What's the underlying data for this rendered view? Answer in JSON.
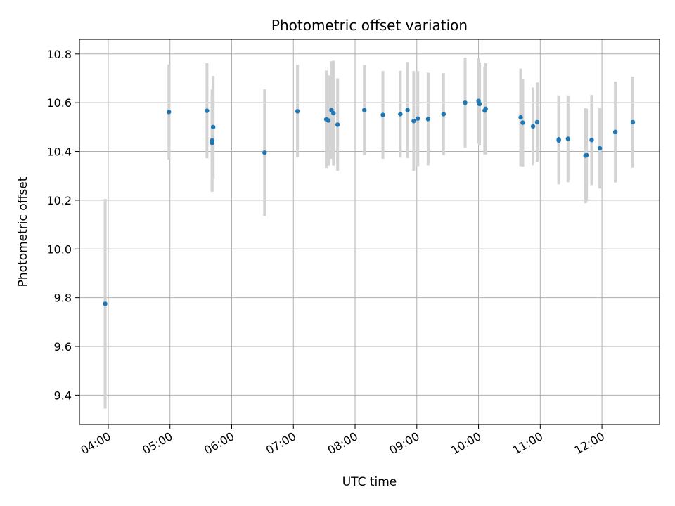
{
  "chart_data": {
    "type": "scatter",
    "title": "Photometric offset variation",
    "xlabel": "UTC time",
    "ylabel": "Photometric offset",
    "x_axis_kind": "time",
    "xlim": [
      "03:32",
      "12:56"
    ],
    "ylim": [
      9.28,
      10.86
    ],
    "x_ticks": [
      "04:00",
      "05:00",
      "06:00",
      "07:00",
      "08:00",
      "09:00",
      "10:00",
      "11:00",
      "12:00"
    ],
    "y_ticks": [
      9.4,
      9.6,
      9.8,
      10.0,
      10.2,
      10.4,
      10.6,
      10.8
    ],
    "y_tick_labels": [
      "9.4",
      "9.6",
      "9.8",
      "10.0",
      "10.2",
      "10.4",
      "10.6",
      "10.8"
    ],
    "grid": true,
    "series": [
      {
        "marker_color": "#1f77b4",
        "errorbar_color": "#d3d3d3",
        "points": [
          {
            "x": "03:57",
            "y": 9.775,
            "yerr": 0.43
          },
          {
            "x": "04:59",
            "y": 10.562,
            "yerr": 0.195
          },
          {
            "x": "05:36",
            "y": 10.567,
            "yerr": 0.195
          },
          {
            "x": "05:41",
            "y": 10.445,
            "yerr": 0.21
          },
          {
            "x": "05:41",
            "y": 10.435,
            "yerr": 0.2
          },
          {
            "x": "05:42",
            "y": 10.5,
            "yerr": 0.21
          },
          {
            "x": "06:32",
            "y": 10.395,
            "yerr": 0.26
          },
          {
            "x": "07:04",
            "y": 10.565,
            "yerr": 0.19
          },
          {
            "x": "07:32",
            "y": 10.532,
            "yerr": 0.2
          },
          {
            "x": "07:34",
            "y": 10.527,
            "yerr": 0.185
          },
          {
            "x": "07:37",
            "y": 10.57,
            "yerr": 0.2
          },
          {
            "x": "07:39",
            "y": 10.557,
            "yerr": 0.215
          },
          {
            "x": "07:43",
            "y": 10.51,
            "yerr": 0.19
          },
          {
            "x": "08:09",
            "y": 10.57,
            "yerr": 0.185
          },
          {
            "x": "08:27",
            "y": 10.55,
            "yerr": 0.18
          },
          {
            "x": "08:44",
            "y": 10.553,
            "yerr": 0.178
          },
          {
            "x": "08:51",
            "y": 10.57,
            "yerr": 0.197
          },
          {
            "x": "08:57",
            "y": 10.525,
            "yerr": 0.205
          },
          {
            "x": "09:01",
            "y": 10.535,
            "yerr": 0.195
          },
          {
            "x": "09:11",
            "y": 10.533,
            "yerr": 0.19
          },
          {
            "x": "09:26",
            "y": 10.553,
            "yerr": 0.168
          },
          {
            "x": "09:47",
            "y": 10.6,
            "yerr": 0.185
          },
          {
            "x": "10:00",
            "y": 10.607,
            "yerr": 0.175
          },
          {
            "x": "10:01",
            "y": 10.595,
            "yerr": 0.17
          },
          {
            "x": "10:06",
            "y": 10.568,
            "yerr": 0.18
          },
          {
            "x": "10:07",
            "y": 10.575,
            "yerr": 0.187
          },
          {
            "x": "10:41",
            "y": 10.54,
            "yerr": 0.2
          },
          {
            "x": "10:43",
            "y": 10.518,
            "yerr": 0.18
          },
          {
            "x": "10:53",
            "y": 10.503,
            "yerr": 0.16
          },
          {
            "x": "10:57",
            "y": 10.52,
            "yerr": 0.163
          },
          {
            "x": "11:18",
            "y": 10.445,
            "yerr": 0.18
          },
          {
            "x": "11:18",
            "y": 10.45,
            "yerr": 0.18
          },
          {
            "x": "11:27",
            "y": 10.452,
            "yerr": 0.178
          },
          {
            "x": "11:44",
            "y": 10.383,
            "yerr": 0.195
          },
          {
            "x": "11:45",
            "y": 10.385,
            "yerr": 0.19
          },
          {
            "x": "11:50",
            "y": 10.447,
            "yerr": 0.185
          },
          {
            "x": "11:58",
            "y": 10.413,
            "yerr": 0.165
          },
          {
            "x": "12:13",
            "y": 10.48,
            "yerr": 0.207
          },
          {
            "x": "12:30",
            "y": 10.52,
            "yerr": 0.187
          }
        ]
      }
    ]
  }
}
